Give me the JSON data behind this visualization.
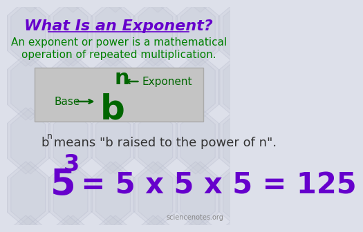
{
  "title": "What Is an Exponent?",
  "title_color": "#6600cc",
  "title_fontsize": 16,
  "subtitle_line1": "An exponent or power is a mathematical",
  "subtitle_line2": "operation of repeated multiplication.",
  "subtitle_color": "#008000",
  "subtitle_fontsize": 11,
  "base_label": "Base",
  "exponent_label": "Exponent",
  "arrow_color": "#006600",
  "label_color": "#006600",
  "b_color": "#006600",
  "n_color": "#006600",
  "bn_desc_line": " means \"b raised to the power of n\".",
  "bn_desc_color": "#333333",
  "example_base": "5",
  "example_exp": "3",
  "example_rest": " = 5 x 5 x 5 = 125",
  "example_color": "#6600cc",
  "watermark": "sciencenotes.org",
  "watermark_color": "#888888",
  "bg_color": "#dde0ea"
}
